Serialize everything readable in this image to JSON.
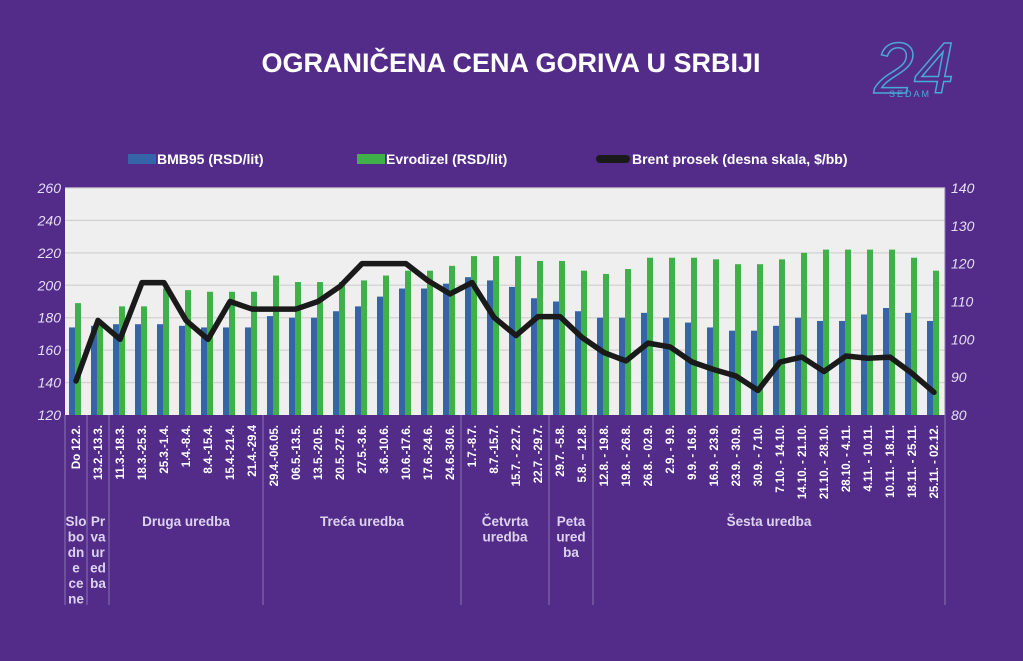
{
  "chart_data": {
    "type": "bar+line",
    "title": "OGRANIČENA CENA GORIVA U SRBIJI",
    "logo": {
      "text": "24",
      "subtext": "SEDAM",
      "color": "#4aa8d8"
    },
    "legend_position": "top",
    "grid": true,
    "categories": [
      "Do 12.2.",
      "13.2.-13.3.",
      "11.3.-18.3.",
      "18.3.-25.3.",
      "25.3.-1.4.",
      "1.4.-8.4.",
      "8.4.-15.4.",
      "15.4.-21.4.",
      "21.4.-29.4",
      "29.4.-06.05.",
      "06.5.-13.5.",
      "13.5.-20.5.",
      "20.5.-27.5.",
      "27.5.-3.6.",
      "3.6.-10.6.",
      "10.6.-17.6.",
      "17.6.-24.6.",
      "24.6.-30.6.",
      "1.7.-8.7.",
      "8.7.-15.7.",
      "15.7. - 22.7.",
      "22.7. -29.7.",
      "29.7. -5.8.",
      "5.8. – 12.8.",
      "12.8. - 19.8.",
      "19.8. - 26.8.",
      "26.8. - 02.9.",
      "2.9. - 9.9.",
      "9.9. - 16.9.",
      "16.9. - 23.9.",
      "23.9. - 30.9.",
      "30.9. - 7.10.",
      "7.10. - 14.10.",
      "14.10. - 21.10.",
      "21.10. - 28.10.",
      "28.10. - 4.11.",
      "4.11. - 10.11.",
      "10.11. - 18.11.",
      "18.11. - 25.11.",
      "25.11. - 02.12."
    ],
    "groups": [
      {
        "label_lines": [
          "Slo",
          "bo",
          "dn",
          "e",
          "ce",
          "ne"
        ],
        "count": 1
      },
      {
        "label_lines": [
          "Pr",
          "va",
          "ur",
          "ed",
          "ba"
        ],
        "count": 1
      },
      {
        "label_lines": [
          "Druga uredba"
        ],
        "count": 7
      },
      {
        "label_lines": [
          "Treća uredba"
        ],
        "count": 9
      },
      {
        "label_lines": [
          "Četvrta",
          "uredba"
        ],
        "count": 4
      },
      {
        "label_lines": [
          "Peta",
          "ured",
          "ba"
        ],
        "count": 2
      },
      {
        "label_lines": [
          "Šesta uredba"
        ],
        "count": 16
      }
    ],
    "y_left": {
      "range": [
        120,
        260
      ],
      "ticks": [
        120,
        140,
        160,
        180,
        200,
        220,
        240,
        260
      ]
    },
    "y_right": {
      "range": [
        80,
        140
      ],
      "ticks": [
        80,
        90,
        100,
        110,
        120,
        130,
        140
      ]
    },
    "series": [
      {
        "name": "BMB95 (RSD/lit)",
        "type": "bar",
        "axis": "left",
        "color": "#3565a8",
        "values": [
          174,
          175,
          176,
          176,
          176,
          175,
          174,
          174,
          174,
          181,
          180,
          180,
          184,
          187,
          193,
          198,
          198,
          201,
          205,
          203,
          199,
          192,
          190,
          184,
          180,
          180,
          183,
          180,
          177,
          174,
          172,
          172,
          175,
          180,
          178,
          178,
          182,
          186,
          183,
          178
        ]
      },
      {
        "name": "Evrodizel (RSD/lit)",
        "type": "bar",
        "axis": "left",
        "color": "#3fb04a",
        "values": [
          189,
          178,
          187,
          187,
          198,
          197,
          196,
          196,
          196,
          206,
          202,
          202,
          202,
          203,
          206,
          209,
          209,
          212,
          218,
          218,
          218,
          215,
          215,
          209,
          207,
          210,
          217,
          217,
          217,
          216,
          213,
          213,
          216,
          220,
          222,
          222,
          222,
          222,
          217,
          209
        ]
      },
      {
        "name": "Brent prosek  (desna skala, $/bb)",
        "type": "line",
        "axis": "right",
        "color": "#1a1a1a",
        "values": [
          89,
          105,
          100,
          115,
          115,
          105,
          100,
          110,
          108,
          108,
          108,
          110,
          114,
          120,
          120,
          120,
          115.5,
          112,
          115,
          105.8,
          101,
          106,
          106,
          100.5,
          96.5,
          94.3,
          99,
          98,
          94,
          92,
          90.3,
          86.5,
          94,
          95.3,
          91.5,
          95.6,
          95,
          95.3,
          91,
          86
        ]
      }
    ]
  }
}
